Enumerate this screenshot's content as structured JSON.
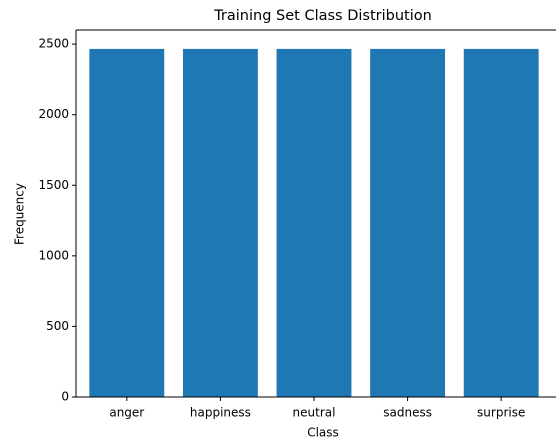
{
  "chart_data": {
    "type": "bar",
    "title": "Training Set Class Distribution",
    "x_label": "Class",
    "y_label": "Frequency",
    "categories": [
      "anger",
      "happiness",
      "neutral",
      "sadness",
      "surprise"
    ],
    "values": [
      2466,
      2466,
      2466,
      2466,
      2466
    ],
    "color": "#1f77b4",
    "ylim": [
      0,
      2600
    ],
    "yticks": [
      0,
      500,
      1000,
      1500,
      2000,
      2500
    ],
    "grid": false
  }
}
